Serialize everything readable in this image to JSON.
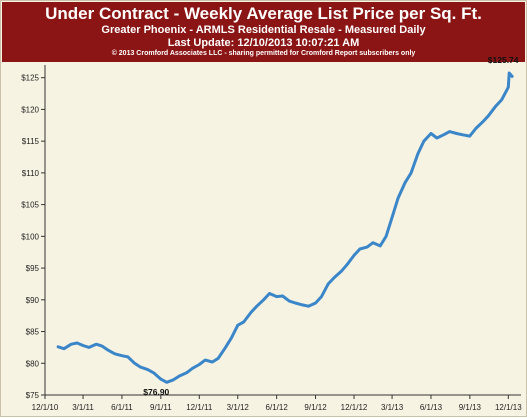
{
  "header": {
    "title": "Under Contract - Weekly Average List Price per Sq. Ft.",
    "subtitle": "Greater Phoenix - ARMLS Residential Resale - Measured Daily",
    "last_update": "Last Update: 12/10/2013 10:07:21 AM",
    "copyright": "© 2013 Cromford Associates LLC - sharing permitted for Cromford Report subscribers only"
  },
  "colors": {
    "header_bg": "#8b1414",
    "plot_bg": "#f7f3e3",
    "line": "#3a86c8"
  },
  "chart_data": {
    "type": "line",
    "title": "Under Contract - Weekly Average List Price per Sq. Ft.",
    "xlabel": "",
    "ylabel": "",
    "x_range": [
      "2010-12-01",
      "2013-12-31"
    ],
    "ylim": [
      75,
      127
    ],
    "grid": false,
    "x_tick_labels": [
      "12/1/10",
      "3/1/11",
      "6/1/11",
      "9/1/11",
      "12/1/11",
      "3/1/12",
      "6/1/12",
      "9/1/12",
      "12/1/12",
      "3/1/13",
      "6/1/13",
      "9/1/13",
      "12/1/13"
    ],
    "x_tick_dates": [
      "2010-12-01",
      "2011-03-01",
      "2011-06-01",
      "2011-09-01",
      "2011-12-01",
      "2012-03-01",
      "2012-06-01",
      "2012-09-01",
      "2012-12-01",
      "2013-03-01",
      "2013-06-01",
      "2013-09-01",
      "2013-12-01"
    ],
    "y_tick_labels": [
      "$75",
      "$80",
      "$85",
      "$90",
      "$95",
      "$100",
      "$105",
      "$110",
      "$115",
      "$120",
      "$125"
    ],
    "y_tick_values": [
      75,
      80,
      85,
      90,
      95,
      100,
      105,
      110,
      115,
      120,
      125
    ],
    "annotations": [
      {
        "text": "$76.90",
        "x": "2011-08-26",
        "y": 76.9
      },
      {
        "text": "$125.74",
        "x": "2013-12-03",
        "y": 125.74
      }
    ],
    "series": [
      {
        "x": [
          "2011-01-01",
          "2011-01-15",
          "2011-02-01",
          "2011-02-15",
          "2011-03-01",
          "2011-03-15",
          "2011-04-01",
          "2011-04-15",
          "2011-05-01",
          "2011-05-15",
          "2011-06-01",
          "2011-06-15",
          "2011-07-01",
          "2011-07-15",
          "2011-08-01",
          "2011-08-15",
          "2011-09-01",
          "2011-09-15",
          "2011-10-01",
          "2011-10-15",
          "2011-11-01",
          "2011-11-15",
          "2011-12-01",
          "2011-12-15",
          "2012-01-01",
          "2012-01-15",
          "2012-02-01",
          "2012-02-15",
          "2012-03-01",
          "2012-03-15",
          "2012-04-01",
          "2012-04-15",
          "2012-05-01",
          "2012-05-15",
          "2012-06-01",
          "2012-06-15",
          "2012-07-01",
          "2012-07-15",
          "2012-08-01",
          "2012-08-15",
          "2012-09-01",
          "2012-09-15",
          "2012-10-01",
          "2012-10-15",
          "2012-11-01",
          "2012-11-15",
          "2012-12-01",
          "2012-12-15",
          "2013-01-01",
          "2013-01-15",
          "2013-02-01",
          "2013-02-15",
          "2013-03-01",
          "2013-03-15",
          "2013-04-01",
          "2013-04-15",
          "2013-05-01",
          "2013-05-15",
          "2013-06-01",
          "2013-06-15",
          "2013-07-01",
          "2013-07-15",
          "2013-08-01",
          "2013-08-15",
          "2013-09-01",
          "2013-09-15",
          "2013-10-01",
          "2013-10-15",
          "2013-11-01",
          "2013-11-15",
          "2013-12-01",
          "2013-12-03",
          "2013-12-10"
        ],
        "values": [
          82.6,
          82.3,
          83.0,
          83.2,
          82.8,
          82.5,
          83.0,
          82.7,
          82.0,
          81.5,
          81.2,
          81.0,
          80.0,
          79.4,
          79.0,
          78.5,
          77.5,
          77.0,
          77.4,
          78.0,
          78.5,
          79.2,
          79.8,
          80.5,
          80.2,
          80.8,
          82.5,
          84.0,
          86.0,
          86.5,
          88.0,
          89.0,
          90.0,
          91.0,
          90.5,
          90.6,
          89.8,
          89.5,
          89.2,
          89.0,
          89.5,
          90.5,
          92.5,
          93.5,
          94.5,
          95.6,
          97.0,
          98.0,
          98.3,
          99.0,
          98.5,
          100.0,
          103.0,
          106.0,
          108.5,
          110.0,
          113.0,
          115.0,
          116.2,
          115.5,
          116.0,
          116.5,
          116.2,
          116.0,
          115.8,
          117.0,
          118.0,
          119.0,
          120.5,
          121.5,
          123.5,
          125.74,
          125.2
        ]
      }
    ]
  }
}
